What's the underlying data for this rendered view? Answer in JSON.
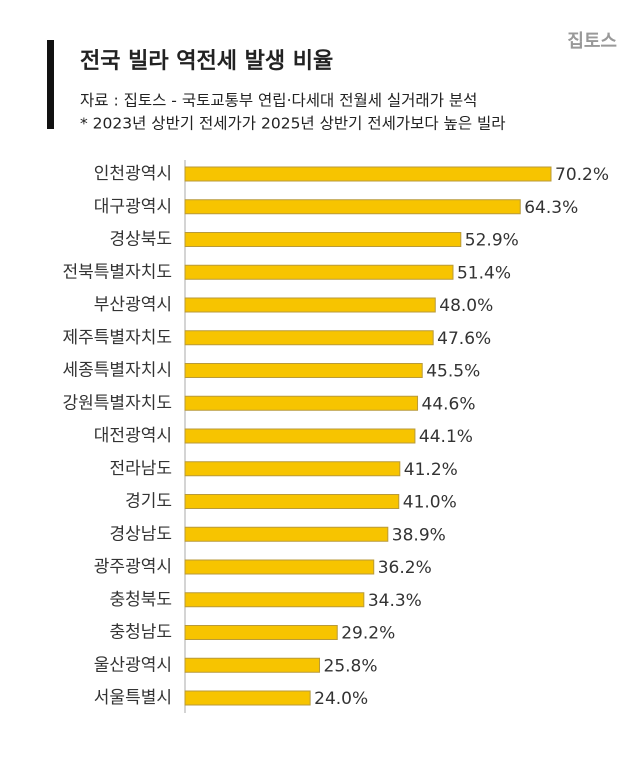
{
  "chart_data": {
    "type": "hbar",
    "title": "전국 빌라 역전세 발생 비율",
    "subtitle": [
      "자료 : 집토스 - 국토교통부 연립·다세대 전월세 실거래가 분석",
      "* 2023년 상반기 전세가가 2025년 상반기 전세가보다 높은 빌라"
    ],
    "brand": "집토스",
    "color": "#f7c400",
    "categories": [
      "인천광역시",
      "대구광역시",
      "경상북도",
      "전북특별자치도",
      "부산광역시",
      "제주특별자치도",
      "세종특별자치시",
      "강원특별자치도",
      "대전광역시",
      "전라남도",
      "경기도",
      "경상남도",
      "광주광역시",
      "충청북도",
      "충청남도",
      "울산광역시",
      "서울특별시"
    ],
    "values": [
      70.2,
      64.3,
      52.9,
      51.4,
      48.0,
      47.6,
      45.5,
      44.6,
      44.1,
      41.2,
      41.0,
      38.9,
      36.2,
      34.3,
      29.2,
      25.8,
      24.0
    ],
    "value_labels": [
      "70.2%",
      "64.3%",
      "52.9%",
      "51.4%",
      "48.0%",
      "47.6%",
      "45.5%",
      "44.6%",
      "44.1%",
      "41.2%",
      "41.0%",
      "38.9%",
      "36.2%",
      "34.3%",
      "29.2%",
      "25.8%",
      "24.0%"
    ]
  }
}
